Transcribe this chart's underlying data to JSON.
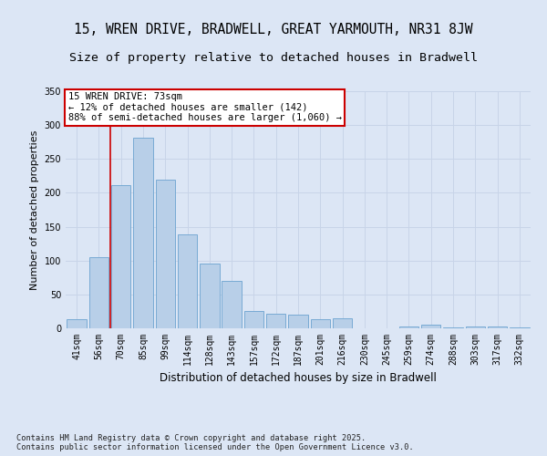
{
  "title_line1": "15, WREN DRIVE, BRADWELL, GREAT YARMOUTH, NR31 8JW",
  "title_line2": "Size of property relative to detached houses in Bradwell",
  "xlabel": "Distribution of detached houses by size in Bradwell",
  "ylabel": "Number of detached properties",
  "categories": [
    "41sqm",
    "56sqm",
    "70sqm",
    "85sqm",
    "99sqm",
    "114sqm",
    "128sqm",
    "143sqm",
    "157sqm",
    "172sqm",
    "187sqm",
    "201sqm",
    "216sqm",
    "230sqm",
    "245sqm",
    "259sqm",
    "274sqm",
    "288sqm",
    "303sqm",
    "317sqm",
    "332sqm"
  ],
  "values": [
    14,
    105,
    212,
    281,
    220,
    139,
    96,
    70,
    25,
    22,
    20,
    13,
    15,
    0,
    0,
    3,
    5,
    2,
    3,
    3,
    2
  ],
  "bar_color": "#b8cfe8",
  "bar_edge_color": "#6ba3d0",
  "grid_color": "#c8d4e8",
  "background_color": "#dce6f5",
  "fig_background_color": "#dce6f5",
  "annotation_text": "15 WREN DRIVE: 73sqm\n← 12% of detached houses are smaller (142)\n88% of semi-detached houses are larger (1,060) →",
  "vline_x_index": 1.5,
  "vline_color": "#cc0000",
  "annotation_box_color": "#ffffff",
  "annotation_box_edge": "#cc0000",
  "ylim": [
    0,
    350
  ],
  "yticks": [
    0,
    50,
    100,
    150,
    200,
    250,
    300,
    350
  ],
  "footer_text": "Contains HM Land Registry data © Crown copyright and database right 2025.\nContains public sector information licensed under the Open Government Licence v3.0.",
  "title_fontsize": 10.5,
  "subtitle_fontsize": 9.5,
  "axis_label_fontsize": 8.5,
  "tick_fontsize": 7,
  "annotation_fontsize": 7.5,
  "footer_fontsize": 6.2,
  "ylabel_fontsize": 8
}
